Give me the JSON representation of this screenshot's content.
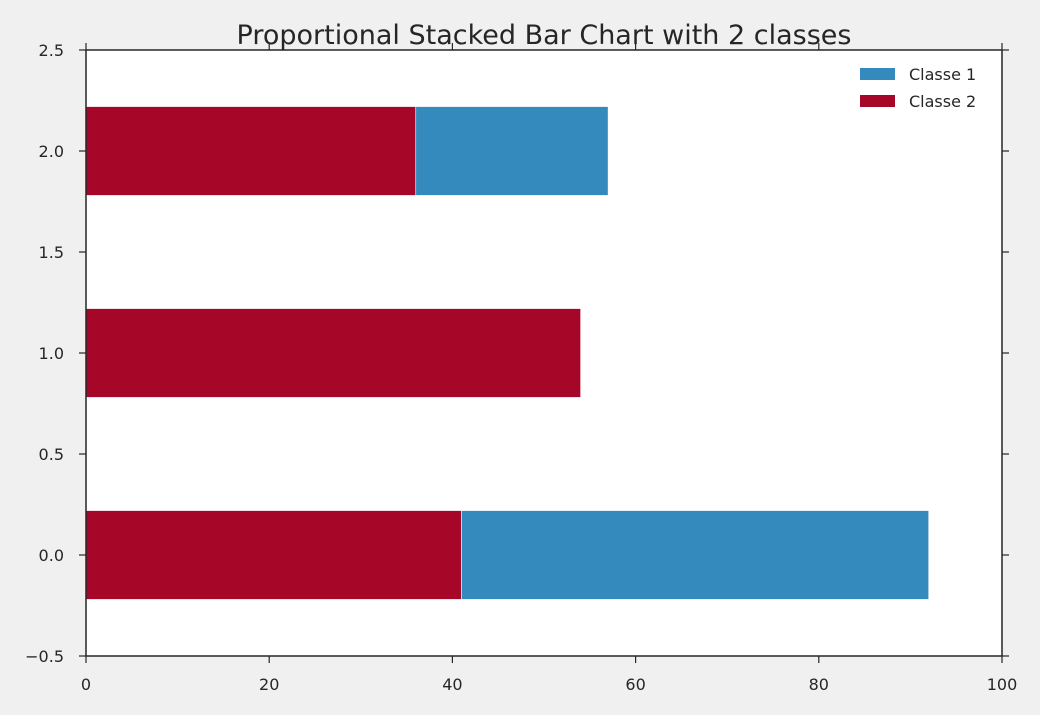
{
  "chart_data": {
    "type": "bar",
    "orientation": "horizontal",
    "stacked": true,
    "title": "Proportional Stacked Bar Chart with 2 classes",
    "xlabel": "",
    "ylabel": "",
    "xlim": [
      0,
      100
    ],
    "ylim": [
      -0.5,
      2.5
    ],
    "x_ticks": [
      0,
      20,
      40,
      60,
      80,
      100
    ],
    "x_tick_labels": [
      "0",
      "20",
      "40",
      "60",
      "80",
      "100"
    ],
    "y_ticks": [
      -0.5,
      0.0,
      0.5,
      1.0,
      1.5,
      2.0,
      2.5
    ],
    "y_tick_labels": [
      "−0.5",
      "0.0",
      "0.5",
      "1.0",
      "1.5",
      "2.0",
      "2.5"
    ],
    "categories": [
      0,
      1,
      2
    ],
    "bar_height": 0.44,
    "grid": false,
    "legend_position": "top-right",
    "series": [
      {
        "name": "Classe 2",
        "color": "#a60628",
        "values": [
          41,
          54,
          36
        ]
      },
      {
        "name": "Classe 1",
        "color": "#348abd",
        "values": [
          51,
          0,
          21
        ]
      }
    ],
    "legend": [
      {
        "name": "Classe 1",
        "color": "#348abd"
      },
      {
        "name": "Classe 2",
        "color": "#a60628"
      }
    ]
  }
}
